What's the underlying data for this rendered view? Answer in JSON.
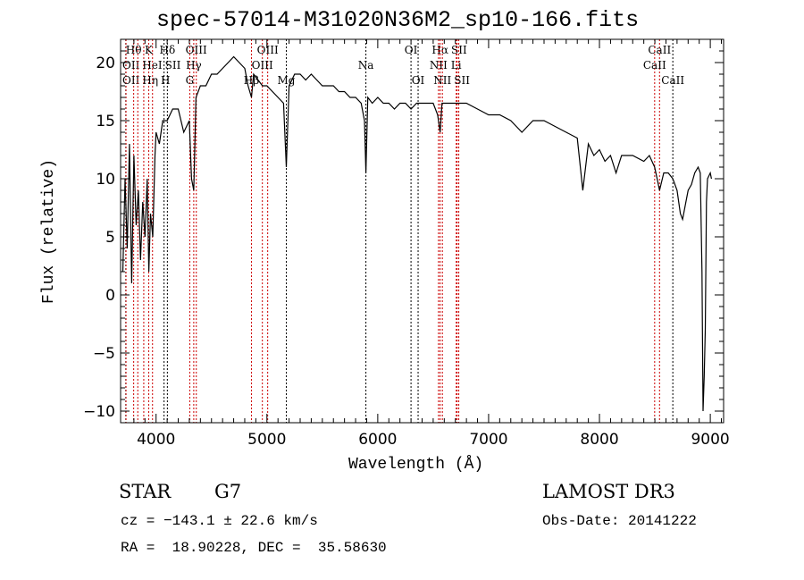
{
  "chart_data": {
    "type": "line",
    "title": "spec-57014-M31020N36M2_sp10-166.fits",
    "xlabel": "Wavelength (Å)",
    "ylabel": "Flux (relative)",
    "xlim": [
      3680,
      9120
    ],
    "ylim": [
      -11,
      22
    ],
    "xticks": [
      4000,
      5000,
      6000,
      7000,
      8000,
      9000
    ],
    "yticks": [
      -10,
      -5,
      0,
      5,
      10,
      15,
      20
    ],
    "spectrum": {
      "x": [
        3700,
        3720,
        3740,
        3760,
        3780,
        3800,
        3820,
        3840,
        3860,
        3880,
        3900,
        3920,
        3935,
        3950,
        3970,
        3990,
        4000,
        4030,
        4060,
        4100,
        4150,
        4200,
        4250,
        4300,
        4320,
        4340,
        4360,
        4400,
        4450,
        4500,
        4550,
        4600,
        4650,
        4700,
        4750,
        4800,
        4830,
        4861,
        4880,
        4920,
        4960,
        5000,
        5050,
        5100,
        5150,
        5175,
        5200,
        5250,
        5300,
        5350,
        5400,
        5450,
        5500,
        5550,
        5600,
        5650,
        5700,
        5750,
        5800,
        5850,
        5880,
        5893,
        5910,
        5950,
        6000,
        6050,
        6100,
        6150,
        6200,
        6250,
        6300,
        6350,
        6400,
        6450,
        6500,
        6540,
        6563,
        6580,
        6620,
        6700,
        6800,
        6900,
        7000,
        7100,
        7200,
        7250,
        7300,
        7400,
        7500,
        7600,
        7700,
        7800,
        7850,
        7900,
        7950,
        8000,
        8050,
        8100,
        8150,
        8200,
        8300,
        8400,
        8450,
        8498,
        8520,
        8542,
        8580,
        8620,
        8662,
        8700,
        8730,
        8750,
        8780,
        8800,
        8830,
        8860,
        8890,
        8910,
        8925,
        8935,
        8945,
        8955,
        8965,
        8975,
        9000,
        9010
      ],
      "y": [
        2,
        10,
        4,
        13,
        1,
        12,
        6,
        9,
        3,
        8,
        5,
        10,
        2,
        7,
        5,
        12,
        14,
        13,
        15,
        15,
        16,
        16,
        14,
        15,
        10,
        9,
        17,
        18,
        18,
        19,
        19,
        19.5,
        20,
        20.5,
        20,
        19.5,
        18,
        17,
        19,
        18.5,
        18,
        18,
        17.5,
        17,
        16.5,
        11,
        18,
        19,
        19,
        18.5,
        19,
        18.5,
        18,
        18,
        18,
        17.5,
        17.5,
        17,
        17,
        16.5,
        15,
        10.5,
        17,
        16.5,
        17,
        16.5,
        16.5,
        16,
        16.5,
        16.5,
        16,
        16.5,
        16.5,
        16.5,
        16.5,
        15.5,
        14,
        16.5,
        16.5,
        16.5,
        16.5,
        16,
        15.5,
        15.5,
        15,
        14.5,
        14,
        15,
        15,
        14.5,
        14,
        13.5,
        9,
        13,
        12,
        12.5,
        11.5,
        12,
        10.5,
        12,
        12,
        11.5,
        12,
        11,
        10,
        9,
        10.5,
        10.5,
        10,
        9,
        7,
        6.5,
        8,
        9,
        9.5,
        10.5,
        11,
        10.5,
        2,
        -10,
        -7,
        -3,
        8,
        10,
        10.5,
        10
      ]
    },
    "lines": [
      {
        "label": "Hθ",
        "wl": 3798,
        "row": 1,
        "color": "#cc0000"
      },
      {
        "label": "K",
        "wl": 3934,
        "row": 1,
        "color": "#cc0000"
      },
      {
        "label": "Hδ",
        "wl": 4102,
        "row": 1,
        "color": "#000000"
      },
      {
        "label": "OIII",
        "wl": 4363,
        "row": 1,
        "color": "#cc0000"
      },
      {
        "label": "OIII",
        "wl": 5007,
        "row": 1,
        "color": "#cc0000"
      },
      {
        "label": "OI",
        "wl": 6300,
        "row": 1,
        "color": "#000000"
      },
      {
        "label": "Hα",
        "wl": 6563,
        "row": 1,
        "color": "#cc0000"
      },
      {
        "label": "SII",
        "wl": 6716,
        "row": 1,
        "color": "#cc0000"
      },
      {
        "label": "CaII",
        "wl": 8542,
        "row": 1,
        "color": "#cc0000"
      },
      {
        "label": "OII",
        "wl": 3727,
        "row": 2,
        "color": "#000000"
      },
      {
        "label": "HeI",
        "wl": 3889,
        "row": 2,
        "color": "#cc0000"
      },
      {
        "label": "SII",
        "wl": 4072,
        "row": 2,
        "color": "#000000"
      },
      {
        "label": "Hγ",
        "wl": 4340,
        "row": 2,
        "color": "#cc0000"
      },
      {
        "label": "OIII",
        "wl": 4959,
        "row": 2,
        "color": "#cc0000"
      },
      {
        "label": "Na",
        "wl": 5893,
        "row": 2,
        "color": "#000000"
      },
      {
        "label": "NII",
        "wl": 6548,
        "row": 2,
        "color": "#cc0000"
      },
      {
        "label": "Li",
        "wl": 6708,
        "row": 2,
        "color": "#cc0000"
      },
      {
        "label": "CaII",
        "wl": 8498,
        "row": 2,
        "color": "#cc0000"
      },
      {
        "label": "OII",
        "wl": 3729,
        "row": 3,
        "color": "#cc0000"
      },
      {
        "label": "Hη",
        "wl": 3835,
        "row": 3,
        "color": "#cc0000"
      },
      {
        "label": "H",
        "wl": 3968,
        "row": 3,
        "color": "#cc0000"
      },
      {
        "label": "G",
        "wl": 4304,
        "row": 3,
        "color": "#cc0000"
      },
      {
        "label": "Hβ",
        "wl": 4861,
        "row": 3,
        "color": "#cc0000"
      },
      {
        "label": "Mg",
        "wl": 5175,
        "row": 3,
        "color": "#000000"
      },
      {
        "label": "OI",
        "wl": 6364,
        "row": 3,
        "color": "#000000"
      },
      {
        "label": "NII",
        "wl": 6583,
        "row": 3,
        "color": "#cc0000"
      },
      {
        "label": "SII",
        "wl": 6731,
        "row": 3,
        "color": "#cc0000"
      },
      {
        "label": "CaII",
        "wl": 8662,
        "row": 3,
        "color": "#000000"
      }
    ]
  },
  "info": {
    "class": "STAR",
    "subclass": "G7",
    "survey": "LAMOST DR3",
    "cz": "cz = −143.1 ± 22.6 km/s",
    "obs_date": "Obs-Date: 20141222",
    "coords": "RA =  18.90228, DEC =  35.58630"
  }
}
